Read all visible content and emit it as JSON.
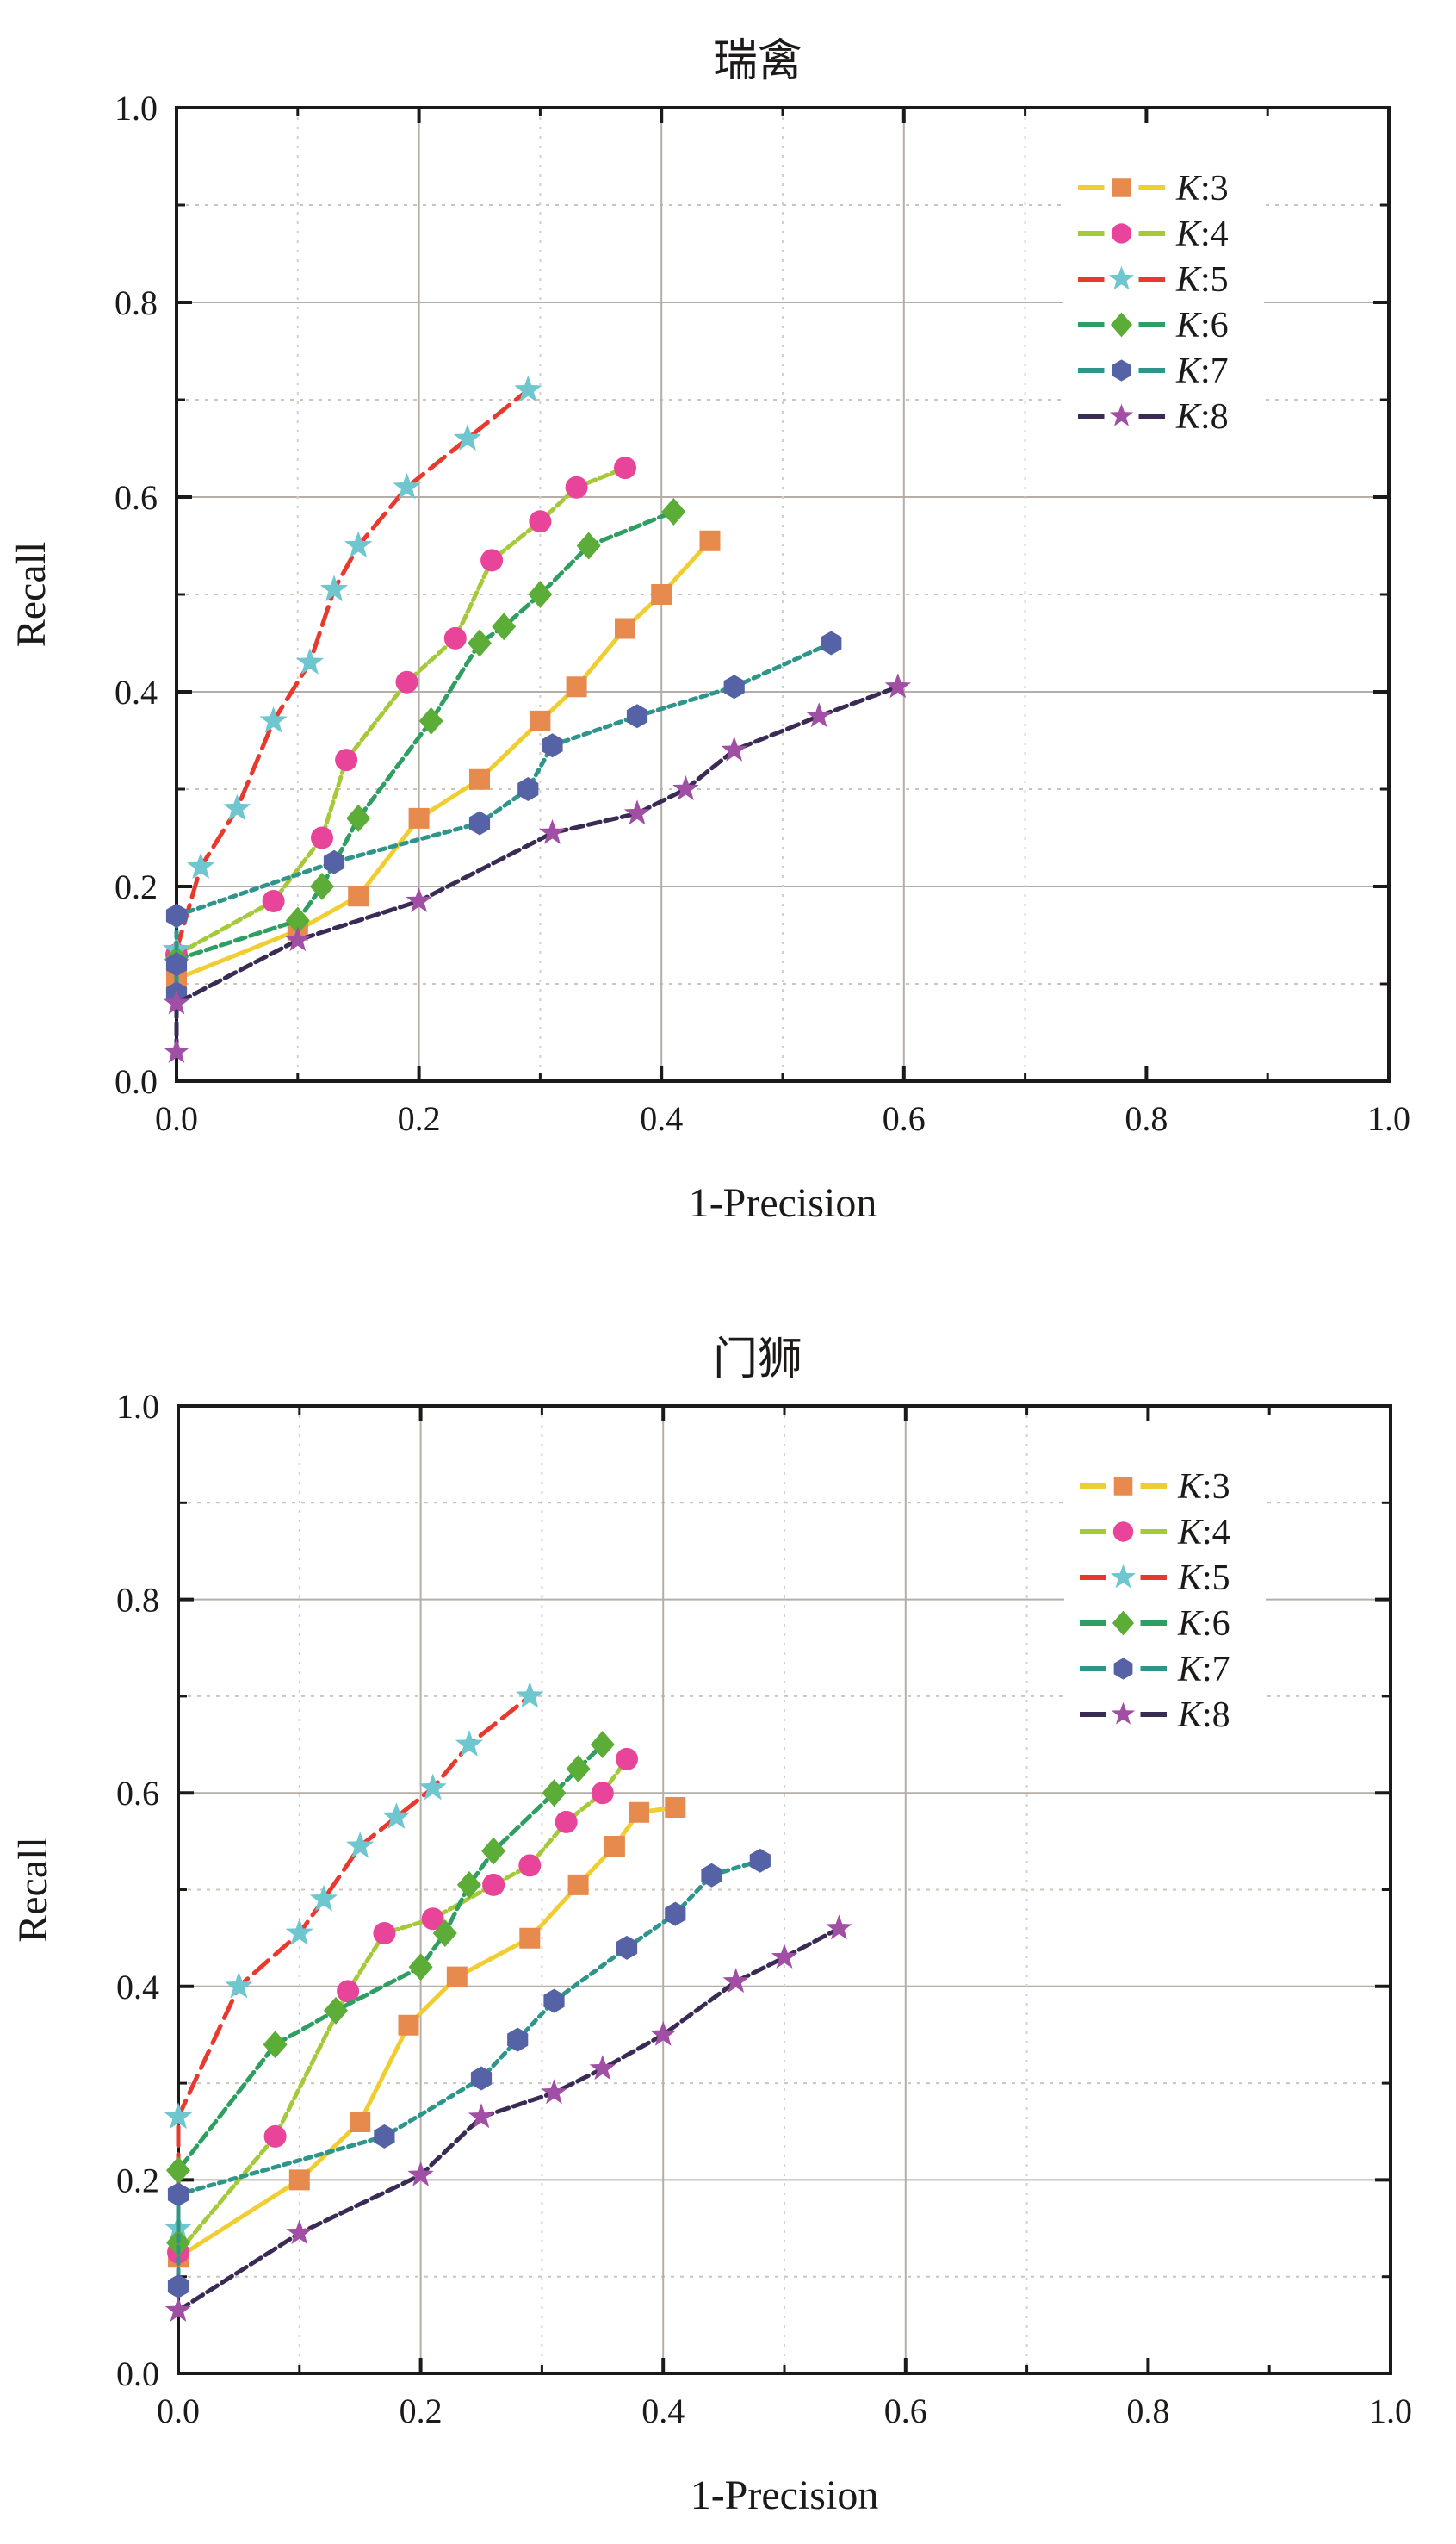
{
  "page": {
    "background": "#ffffff",
    "text_color": "#1c1a19"
  },
  "chart_data": [
    {
      "type": "line",
      "title": "瑞禽",
      "xlabel": "1-Precision",
      "ylabel": "Recall",
      "xlim": [
        0.0,
        1.0
      ],
      "ylim": [
        0.0,
        1.0
      ],
      "x_tick_labels": [
        "0.0",
        "0.2",
        "0.4",
        "0.6",
        "0.8",
        "1.0"
      ],
      "y_tick_labels": [
        "0.0",
        "0.2",
        "0.4",
        "0.6",
        "0.8",
        "1.0"
      ],
      "grid": {
        "h_solid": [
          0.2,
          0.4,
          0.6,
          0.8
        ],
        "h_dashed": [
          0.1,
          0.3,
          0.5,
          0.7,
          0.9
        ],
        "v_solid": [
          0.2,
          0.4,
          0.6
        ],
        "v_dotted": [
          0.1,
          0.3,
          0.5,
          0.7
        ]
      },
      "legend_position": "upper-right",
      "series": [
        {
          "label": "K:3",
          "k": 3,
          "marker": "square",
          "line_color": "#f0cd30",
          "marker_color": "#e78a4e",
          "dash": "",
          "points": [
            [
              0.0,
              0.105
            ],
            [
              0.1,
              0.155
            ],
            [
              0.15,
              0.19
            ],
            [
              0.2,
              0.27
            ],
            [
              0.25,
              0.31
            ],
            [
              0.3,
              0.37
            ],
            [
              0.33,
              0.405
            ],
            [
              0.37,
              0.465
            ],
            [
              0.4,
              0.5
            ],
            [
              0.44,
              0.555
            ]
          ]
        },
        {
          "label": "K:4",
          "k": 4,
          "marker": "circle",
          "line_color": "#a6c93a",
          "marker_color": "#e84499",
          "dash": "10 5",
          "points": [
            [
              0.0,
              0.13
            ],
            [
              0.08,
              0.185
            ],
            [
              0.12,
              0.25
            ],
            [
              0.14,
              0.33
            ],
            [
              0.19,
              0.41
            ],
            [
              0.23,
              0.455
            ],
            [
              0.26,
              0.535
            ],
            [
              0.3,
              0.575
            ],
            [
              0.33,
              0.61
            ],
            [
              0.37,
              0.63
            ]
          ]
        },
        {
          "label": "K:5",
          "k": 5,
          "marker": "star",
          "line_color": "#e8392f",
          "marker_color": "#6ec6ce",
          "dash": "22 10",
          "points": [
            [
              0.0,
              0.135
            ],
            [
              0.02,
              0.22
            ],
            [
              0.05,
              0.28
            ],
            [
              0.08,
              0.37
            ],
            [
              0.11,
              0.43
            ],
            [
              0.13,
              0.505
            ],
            [
              0.15,
              0.55
            ],
            [
              0.19,
              0.61
            ],
            [
              0.24,
              0.66
            ],
            [
              0.29,
              0.71
            ]
          ]
        },
        {
          "label": "K:6",
          "k": 6,
          "marker": "diamond",
          "line_color": "#2f9e62",
          "marker_color": "#5cad37",
          "dash": "12 6",
          "points": [
            [
              0.0,
              0.125
            ],
            [
              0.1,
              0.165
            ],
            [
              0.12,
              0.2
            ],
            [
              0.15,
              0.27
            ],
            [
              0.21,
              0.37
            ],
            [
              0.25,
              0.45
            ],
            [
              0.27,
              0.467
            ],
            [
              0.3,
              0.5
            ],
            [
              0.34,
              0.55
            ],
            [
              0.41,
              0.585
            ]
          ]
        },
        {
          "label": "K:7",
          "k": 7,
          "marker": "hexagon",
          "line_color": "#2f958b",
          "marker_color": "#5562a6",
          "dash": "7 6",
          "points": [
            [
              0.0,
              0.09
            ],
            [
              0.0,
              0.12
            ],
            [
              0.0,
              0.17
            ],
            [
              0.13,
              0.225
            ],
            [
              0.25,
              0.265
            ],
            [
              0.29,
              0.3
            ],
            [
              0.31,
              0.345
            ],
            [
              0.38,
              0.375
            ],
            [
              0.46,
              0.405
            ],
            [
              0.54,
              0.45
            ]
          ]
        },
        {
          "label": "K:8",
          "k": 8,
          "marker": "star2",
          "line_color": "#3a2b55",
          "marker_color": "#a04fa4",
          "dash": "14 6",
          "points": [
            [
              0.0,
              0.03
            ],
            [
              0.0,
              0.08
            ],
            [
              0.1,
              0.145
            ],
            [
              0.2,
              0.185
            ],
            [
              0.31,
              0.255
            ],
            [
              0.38,
              0.275
            ],
            [
              0.42,
              0.3
            ],
            [
              0.46,
              0.34
            ],
            [
              0.53,
              0.375
            ],
            [
              0.595,
              0.405
            ]
          ]
        }
      ]
    },
    {
      "type": "line",
      "title": "门狮",
      "xlabel": "1-Precision",
      "ylabel": "Recall",
      "xlim": [
        0.0,
        1.0
      ],
      "ylim": [
        0.0,
        1.0
      ],
      "x_tick_labels": [
        "0.0",
        "0.2",
        "0.4",
        "0.6",
        "0.8",
        "1.0"
      ],
      "y_tick_labels": [
        "0.0",
        "0.2",
        "0.4",
        "0.6",
        "0.8",
        "1.0"
      ],
      "grid": {
        "h_solid": [
          0.2,
          0.4,
          0.6,
          0.8
        ],
        "h_dashed": [
          0.1,
          0.3,
          0.5,
          0.7,
          0.9
        ],
        "v_solid": [
          0.2,
          0.4,
          0.6
        ],
        "v_dotted": [
          0.1,
          0.3,
          0.5,
          0.7
        ]
      },
      "legend_position": "upper-right",
      "series": [
        {
          "label": "K:3",
          "k": 3,
          "marker": "square",
          "line_color": "#f0cd30",
          "marker_color": "#e78a4e",
          "dash": "",
          "points": [
            [
              0.0,
              0.12
            ],
            [
              0.1,
              0.2
            ],
            [
              0.15,
              0.26
            ],
            [
              0.19,
              0.36
            ],
            [
              0.23,
              0.41
            ],
            [
              0.29,
              0.45
            ],
            [
              0.33,
              0.505
            ],
            [
              0.36,
              0.545
            ],
            [
              0.38,
              0.58
            ],
            [
              0.41,
              0.585
            ]
          ]
        },
        {
          "label": "K:4",
          "k": 4,
          "marker": "circle",
          "line_color": "#a6c93a",
          "marker_color": "#e84499",
          "dash": "10 5",
          "points": [
            [
              0.0,
              0.125
            ],
            [
              0.08,
              0.245
            ],
            [
              0.14,
              0.395
            ],
            [
              0.17,
              0.455
            ],
            [
              0.21,
              0.47
            ],
            [
              0.26,
              0.505
            ],
            [
              0.29,
              0.525
            ],
            [
              0.32,
              0.57
            ],
            [
              0.35,
              0.6
            ],
            [
              0.37,
              0.635
            ]
          ]
        },
        {
          "label": "K:5",
          "k": 5,
          "marker": "star",
          "line_color": "#e8392f",
          "marker_color": "#6ec6ce",
          "dash": "22 10",
          "points": [
            [
              0.0,
              0.15
            ],
            [
              0.0,
              0.265
            ],
            [
              0.05,
              0.4
            ],
            [
              0.1,
              0.455
            ],
            [
              0.12,
              0.49
            ],
            [
              0.15,
              0.545
            ],
            [
              0.18,
              0.575
            ],
            [
              0.21,
              0.605
            ],
            [
              0.24,
              0.65
            ],
            [
              0.29,
              0.7
            ]
          ]
        },
        {
          "label": "K:6",
          "k": 6,
          "marker": "diamond",
          "line_color": "#2f9e62",
          "marker_color": "#5cad37",
          "dash": "12 6",
          "points": [
            [
              0.0,
              0.135
            ],
            [
              0.0,
              0.21
            ],
            [
              0.08,
              0.34
            ],
            [
              0.13,
              0.375
            ],
            [
              0.2,
              0.42
            ],
            [
              0.22,
              0.455
            ],
            [
              0.24,
              0.505
            ],
            [
              0.26,
              0.54
            ],
            [
              0.31,
              0.6
            ],
            [
              0.33,
              0.625
            ],
            [
              0.35,
              0.65
            ]
          ]
        },
        {
          "label": "K:7",
          "k": 7,
          "marker": "hexagon",
          "line_color": "#2f958b",
          "marker_color": "#5562a6",
          "dash": "7 6",
          "points": [
            [
              0.0,
              0.09
            ],
            [
              0.0,
              0.185
            ],
            [
              0.17,
              0.245
            ],
            [
              0.25,
              0.305
            ],
            [
              0.28,
              0.345
            ],
            [
              0.31,
              0.385
            ],
            [
              0.37,
              0.44
            ],
            [
              0.41,
              0.475
            ],
            [
              0.44,
              0.515
            ],
            [
              0.48,
              0.53
            ]
          ]
        },
        {
          "label": "K:8",
          "k": 8,
          "marker": "star2",
          "line_color": "#3a2b55",
          "marker_color": "#a04fa4",
          "dash": "14 6",
          "points": [
            [
              0.0,
              0.065
            ],
            [
              0.1,
              0.145
            ],
            [
              0.2,
              0.205
            ],
            [
              0.25,
              0.265
            ],
            [
              0.31,
              0.29
            ],
            [
              0.35,
              0.315
            ],
            [
              0.4,
              0.35
            ],
            [
              0.46,
              0.405
            ],
            [
              0.5,
              0.43
            ],
            [
              0.545,
              0.46
            ]
          ]
        }
      ]
    }
  ]
}
